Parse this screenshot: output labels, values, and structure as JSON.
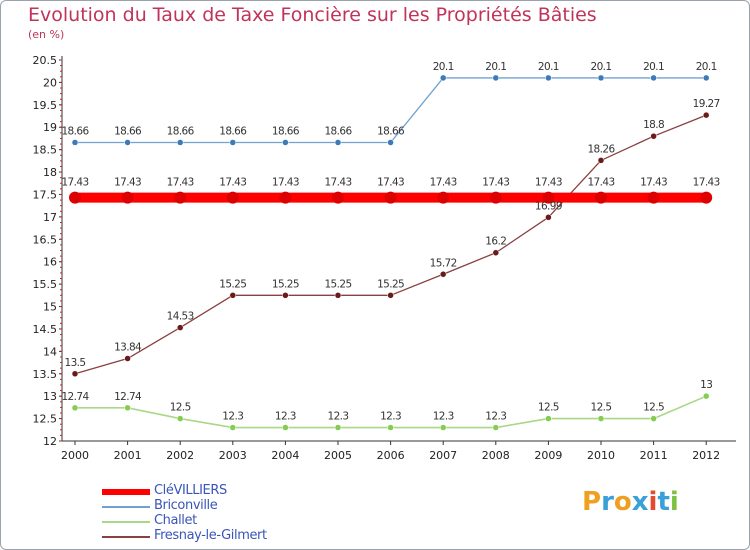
{
  "title": "Evolution du Taux de Taxe Foncière sur les Propriétés Bâties",
  "subtitle": "(en %)",
  "logo": {
    "letters": [
      "P",
      "r",
      "o",
      "x",
      "i",
      "t",
      "i"
    ],
    "colors": [
      "#f0a020",
      "#3aa0d8",
      "#f0a020",
      "#3aa0d8",
      "#e64a2e",
      "#3aa0d8",
      "#7cc242"
    ]
  },
  "chart_data": {
    "type": "line",
    "title": "Evolution du Taux de Taxe Foncière sur les Propriétés Bâties",
    "ylabel": "(en %)",
    "xlabel": "",
    "ylim": [
      12,
      20.5
    ],
    "yticks": [
      "12",
      "12.5",
      "13",
      "13.5",
      "14",
      "14.5",
      "15",
      "15.5",
      "16",
      "16.5",
      "17",
      "17.5",
      "18",
      "18.5",
      "19",
      "19.5",
      "20",
      "20.5"
    ],
    "x": [
      "2000",
      "2001",
      "2002",
      "2003",
      "2004",
      "2005",
      "2006",
      "2007",
      "2008",
      "2009",
      "2010",
      "2011",
      "2012"
    ],
    "series": [
      {
        "name": "CléVILLIERS",
        "color": "#ff0000",
        "marker": "#dd0000",
        "values": [
          17.43,
          17.43,
          17.43,
          17.43,
          17.43,
          17.43,
          17.43,
          17.43,
          17.43,
          17.43,
          17.43,
          17.43,
          17.43
        ],
        "labels": [
          "17.43",
          "17.43",
          "17.43",
          "17.43",
          "17.43",
          "17.43",
          "17.43",
          "17.43",
          "17.43",
          "17.43",
          "17.43",
          "17.43",
          "17.43"
        ]
      },
      {
        "name": "Briconville",
        "color": "#6fa2d0",
        "marker": "#3c7ab8",
        "values": [
          18.66,
          18.66,
          18.66,
          18.66,
          18.66,
          18.66,
          18.66,
          20.1,
          20.1,
          20.1,
          20.1,
          20.1,
          20.1
        ],
        "labels": [
          "18.66",
          "18.66",
          "18.66",
          "18.66",
          "18.66",
          "18.66",
          "18.66",
          "20.1",
          "20.1",
          "20.1",
          "20.1",
          "20.1",
          "20.1"
        ]
      },
      {
        "name": "Challet",
        "color": "#a8d888",
        "marker": "#86cc52",
        "values": [
          12.74,
          12.74,
          12.5,
          12.3,
          12.3,
          12.3,
          12.3,
          12.3,
          12.3,
          12.5,
          12.5,
          12.5,
          13
        ],
        "labels": [
          "12.74",
          "12.74",
          "12.5",
          "12.3",
          "12.3",
          "12.3",
          "12.3",
          "12.3",
          "12.3",
          "12.5",
          "12.5",
          "12.5",
          "13"
        ]
      },
      {
        "name": "Fresnay-le-Gilmert",
        "color": "#8a4040",
        "marker": "#6a1a1a",
        "values": [
          13.5,
          13.84,
          14.53,
          15.25,
          15.25,
          15.25,
          15.25,
          15.72,
          16.2,
          16.99,
          18.26,
          18.8,
          19.27
        ],
        "labels": [
          "13.5",
          "13.84",
          "14.53",
          "15.25",
          "15.25",
          "15.25",
          "15.25",
          "15.72",
          "16.2",
          "16.99",
          "18.26",
          "18.8",
          "19.27"
        ]
      }
    ],
    "legend_position": "bottom-left",
    "grid": false
  }
}
